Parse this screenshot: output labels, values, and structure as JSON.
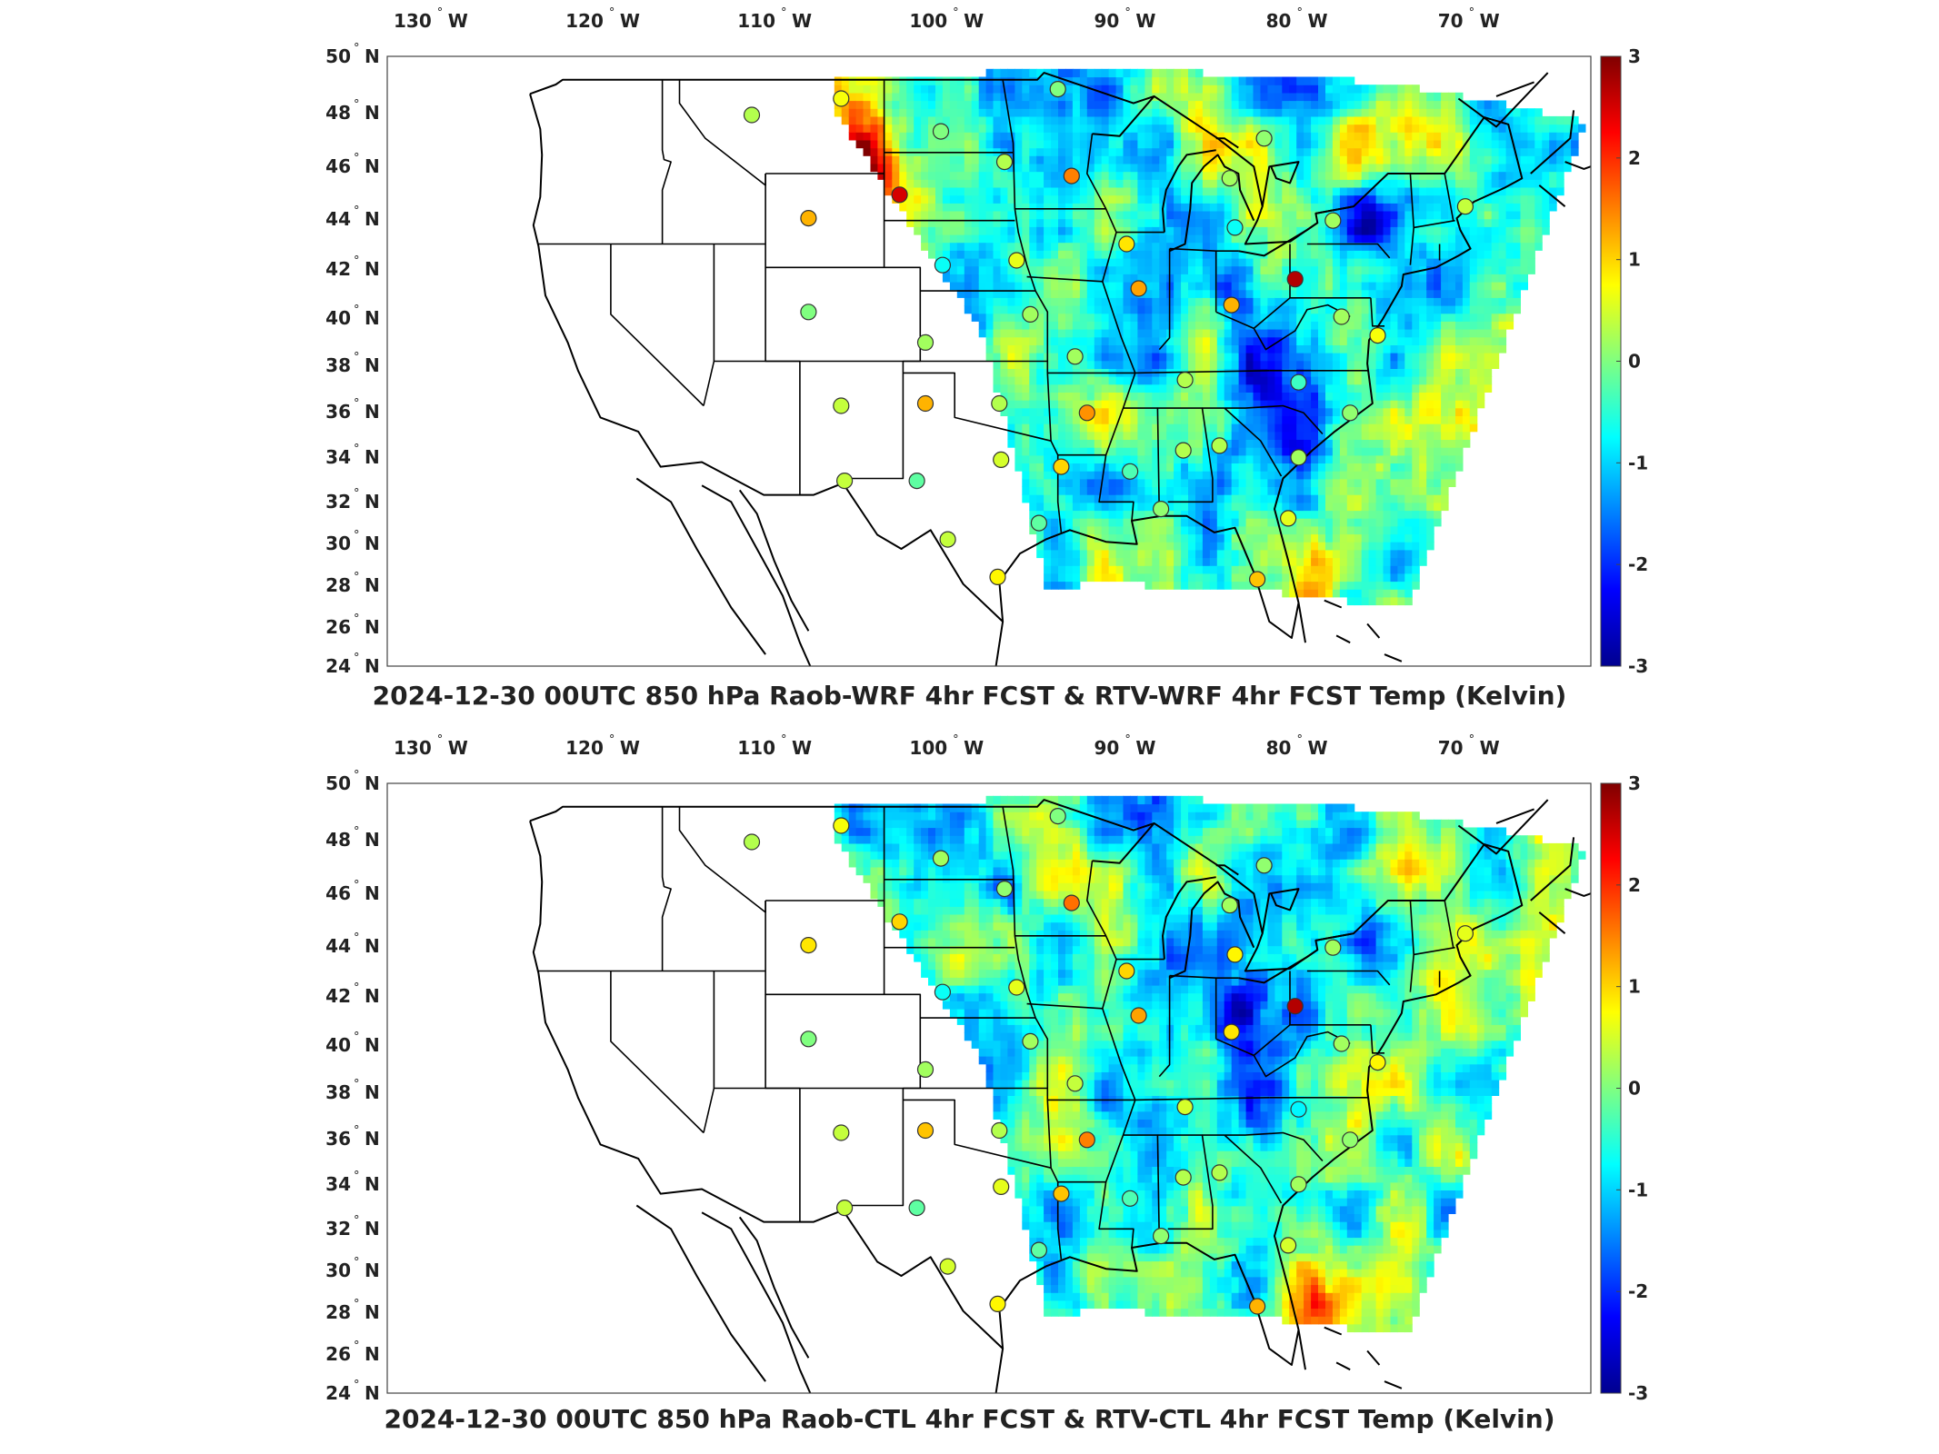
{
  "colorbar": {
    "ticks": [
      "3",
      "2",
      "1",
      "0",
      "-1",
      "-2",
      "-3"
    ]
  },
  "axes": {
    "lon_labels": [
      "130",
      "120",
      "110",
      "100",
      "90",
      "80",
      "70"
    ],
    "lon_hemisphere": "W",
    "lat_labels": [
      "50",
      "48",
      "46",
      "44",
      "42",
      "40",
      "38",
      "36",
      "34",
      "32",
      "30",
      "28",
      "26",
      "24"
    ],
    "lat_hemisphere": "N",
    "degree_symbol": "°"
  },
  "panels": [
    {
      "title": "2024-12-30 00UTC 850 hPa Raob-WRF 4hr FCST & RTV-WRF 4hr FCST Temp (Kelvin)"
    },
    {
      "title": "2024-12-30 00UTC 850 hPa Raob-CTL 4hr FCST & RTV-CTL 4hr FCST Temp (Kelvin)"
    }
  ],
  "palette": {
    "colormap": [
      "#00008f",
      "#0000ff",
      "#0080ff",
      "#00ffff",
      "#80ff80",
      "#ffff00",
      "#ff8000",
      "#ff0000",
      "#800000"
    ]
  },
  "stations": [
    {
      "lon": -111.8,
      "lat": 47.5,
      "v": [
        0.3,
        0.3
      ]
    },
    {
      "lon": -106.6,
      "lat": 48.2,
      "v": [
        0.7,
        0.7
      ]
    },
    {
      "lon": -100.8,
      "lat": 46.8,
      "v": [
        0.0,
        0.2
      ]
    },
    {
      "lon": -97.1,
      "lat": 45.5,
      "v": [
        0.3,
        0.1
      ]
    },
    {
      "lon": -93.2,
      "lat": 44.9,
      "v": [
        1.5,
        1.6
      ]
    },
    {
      "lon": -94.0,
      "lat": 48.6,
      "v": [
        0.0,
        0.0
      ]
    },
    {
      "lon": -103.2,
      "lat": 44.1,
      "v": [
        2.5,
        1.0
      ]
    },
    {
      "lon": -108.5,
      "lat": 43.1,
      "v": [
        1.2,
        0.9
      ]
    },
    {
      "lon": -100.7,
      "lat": 41.1,
      "v": [
        -0.7,
        -0.7
      ]
    },
    {
      "lon": -96.4,
      "lat": 41.3,
      "v": [
        0.6,
        0.6
      ]
    },
    {
      "lon": -108.5,
      "lat": 39.1,
      "v": [
        0.0,
        0.0
      ]
    },
    {
      "lon": -101.7,
      "lat": 37.8,
      "v": [
        0.2,
        0.2
      ]
    },
    {
      "lon": -95.6,
      "lat": 39.0,
      "v": [
        0.2,
        0.2
      ]
    },
    {
      "lon": -93.0,
      "lat": 37.2,
      "v": [
        0.2,
        0.4
      ]
    },
    {
      "lon": -106.6,
      "lat": 35.1,
      "v": [
        0.4,
        0.4
      ]
    },
    {
      "lon": -101.7,
      "lat": 35.2,
      "v": [
        1.2,
        1.1
      ]
    },
    {
      "lon": -97.4,
      "lat": 35.2,
      "v": [
        0.3,
        0.3
      ]
    },
    {
      "lon": -92.3,
      "lat": 34.8,
      "v": [
        1.4,
        1.5
      ]
    },
    {
      "lon": -106.4,
      "lat": 31.9,
      "v": [
        0.4,
        0.4
      ]
    },
    {
      "lon": -102.2,
      "lat": 31.9,
      "v": [
        -0.2,
        -0.2
      ]
    },
    {
      "lon": -97.3,
      "lat": 32.8,
      "v": [
        0.5,
        0.6
      ]
    },
    {
      "lon": -93.8,
      "lat": 32.5,
      "v": [
        1.0,
        1.1
      ]
    },
    {
      "lon": -100.4,
      "lat": 29.4,
      "v": [
        0.4,
        0.5
      ]
    },
    {
      "lon": -97.5,
      "lat": 27.8,
      "v": [
        0.8,
        0.8
      ]
    },
    {
      "lon": -95.1,
      "lat": 30.1,
      "v": [
        -0.2,
        -0.2
      ]
    },
    {
      "lon": -89.8,
      "lat": 32.3,
      "v": [
        -0.3,
        -0.3
      ]
    },
    {
      "lon": -86.7,
      "lat": 33.2,
      "v": [
        0.3,
        0.3
      ]
    },
    {
      "lon": -84.6,
      "lat": 33.4,
      "v": [
        0.3,
        0.3
      ]
    },
    {
      "lon": -82.4,
      "lat": 27.7,
      "v": [
        1.1,
        1.2
      ]
    },
    {
      "lon": -80.6,
      "lat": 30.3,
      "v": [
        0.6,
        0.5
      ]
    },
    {
      "lon": -80.0,
      "lat": 32.9,
      "v": [
        0.2,
        0.2
      ]
    },
    {
      "lon": -77.0,
      "lat": 34.8,
      "v": [
        0.1,
        0.1
      ]
    },
    {
      "lon": -80.0,
      "lat": 36.1,
      "v": [
        -0.4,
        -0.8
      ]
    },
    {
      "lon": -86.6,
      "lat": 36.2,
      "v": [
        0.3,
        0.5
      ]
    },
    {
      "lon": -90.0,
      "lat": 42.0,
      "v": [
        0.9,
        1.0
      ]
    },
    {
      "lon": -89.3,
      "lat": 40.1,
      "v": [
        1.3,
        1.3
      ]
    },
    {
      "lon": -83.7,
      "lat": 42.7,
      "v": [
        -0.7,
        0.8
      ]
    },
    {
      "lon": -83.9,
      "lat": 39.4,
      "v": [
        1.2,
        0.9
      ]
    },
    {
      "lon": -80.2,
      "lat": 40.5,
      "v": [
        2.7,
        2.7
      ]
    },
    {
      "lon": -84.0,
      "lat": 44.8,
      "v": [
        0.2,
        0.2
      ]
    },
    {
      "lon": -78.0,
      "lat": 43.0,
      "v": [
        0.2,
        0.2
      ]
    },
    {
      "lon": -77.5,
      "lat": 38.9,
      "v": [
        0.2,
        0.2
      ]
    },
    {
      "lon": -75.4,
      "lat": 38.1,
      "v": [
        0.7,
        0.8
      ]
    },
    {
      "lon": -70.3,
      "lat": 43.6,
      "v": [
        0.4,
        0.6
      ]
    },
    {
      "lon": -88.0,
      "lat": 30.7,
      "v": [
        0.1,
        0.1
      ]
    },
    {
      "lon": -82.0,
      "lat": 46.5,
      "v": [
        0.1,
        0.1
      ]
    }
  ]
}
